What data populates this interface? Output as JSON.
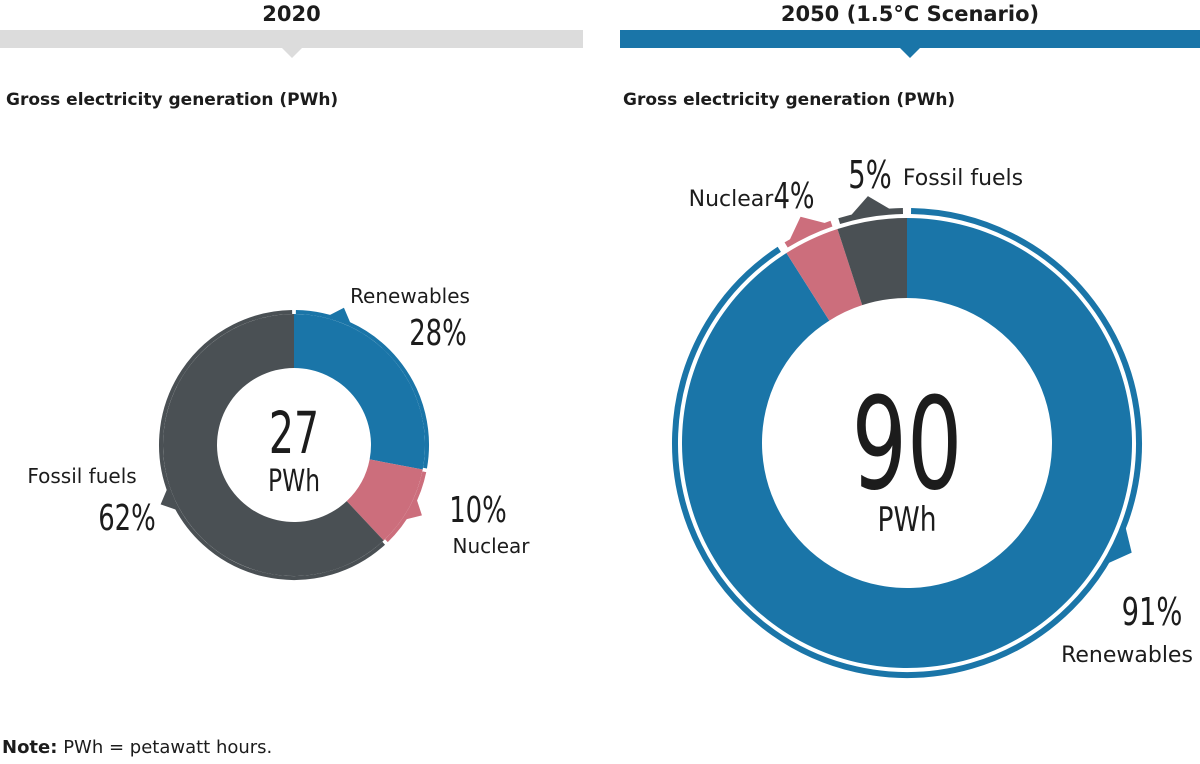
{
  "header_left": {
    "year": "2020"
  },
  "header_right": {
    "year": "2050 (1.5°C Scenario)"
  },
  "subtitle_left": "Gross electricity generation (PWh)",
  "subtitle_right": "Gross electricity generation (PWh)",
  "note": {
    "label": "Note:",
    "text": "PWh = petawatt hours."
  },
  "colors": {
    "renewables": "#1a75a8",
    "nuclear": "#cc6e7c",
    "fossil": "#4a5054",
    "header_left": "#dcdcdc",
    "header_right": "#1a75a8"
  },
  "chart_data": [
    {
      "type": "pie",
      "variant": "donut",
      "center_value": "27",
      "center_unit": "PWh",
      "slices": [
        {
          "label": "Renewables",
          "value": 28,
          "display": "28%"
        },
        {
          "label": "Nuclear",
          "value": 10,
          "display": "10%"
        },
        {
          "label": "Fossil fuels",
          "value": 62,
          "display": "62%"
        }
      ]
    },
    {
      "type": "pie",
      "variant": "donut",
      "center_value": "90",
      "center_unit": "PWh",
      "slices": [
        {
          "label": "Renewables",
          "value": 91,
          "display": "91%"
        },
        {
          "label": "Nuclear",
          "value": 4,
          "display": "4%"
        },
        {
          "label": "Fossil fuels",
          "value": 5,
          "display": "5%"
        }
      ]
    }
  ]
}
